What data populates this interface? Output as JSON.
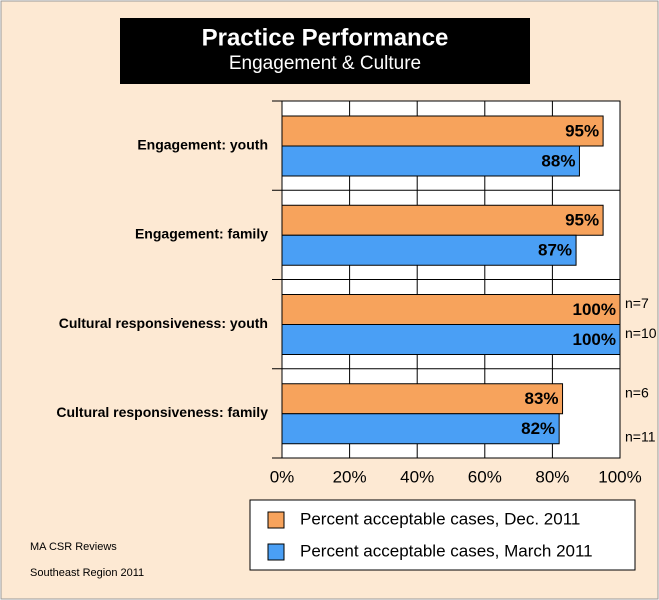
{
  "chart_data": {
    "type": "bar",
    "orientation": "horizontal",
    "title": "Practice Performance",
    "subtitle": "Engagement & Culture",
    "categories": [
      "Engagement: youth",
      "Engagement: family",
      "Cultural responsiveness: youth",
      "Cultural responsiveness: family"
    ],
    "series": [
      {
        "name": "Percent acceptable cases, Dec. 2011",
        "color": "#f7a35c",
        "values": [
          95,
          95,
          100,
          83
        ],
        "value_labels": [
          "95%",
          "95%",
          "100%",
          "83%"
        ],
        "notes": [
          null,
          null,
          "n=7",
          "n=6"
        ]
      },
      {
        "name": "Percent acceptable cases, March 2011",
        "color": "#4a9ff5",
        "values": [
          88,
          87,
          100,
          82
        ],
        "value_labels": [
          "88%",
          "87%",
          "100%",
          "82%"
        ],
        "notes": [
          null,
          null,
          "n=10",
          "n=11"
        ]
      }
    ],
    "xlim": [
      0,
      100
    ],
    "xticks": [
      {
        "value": 0,
        "label": "0%"
      },
      {
        "value": 20,
        "label": "20%"
      },
      {
        "value": 40,
        "label": "40%"
      },
      {
        "value": 60,
        "label": "60%"
      },
      {
        "value": 80,
        "label": "80%"
      },
      {
        "value": 100,
        "label": "100%"
      }
    ],
    "grid": true,
    "footer": [
      "MA CSR Reviews",
      "Southeast Region 2011"
    ]
  }
}
